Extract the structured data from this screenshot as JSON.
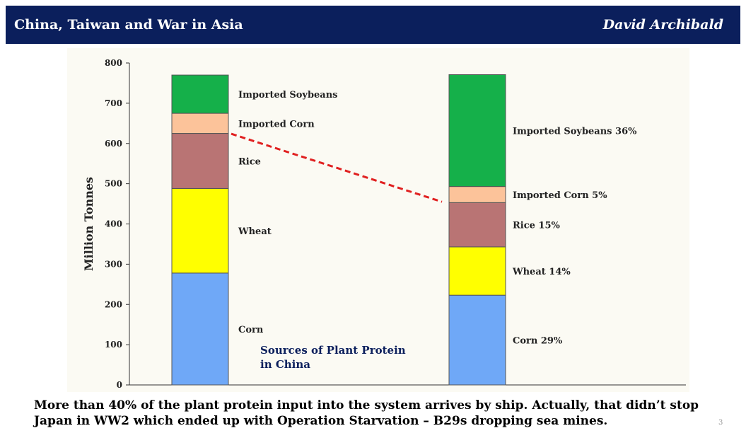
{
  "header": {
    "title": "China, Taiwan and War in Asia",
    "author": "David Archibald"
  },
  "caption": "More than 40% of the plant protein input into the system arrives by ship. Actually, that didn’t stop Japan in WW2 which ended up with Operation Starvation – B29s dropping sea mines.",
  "slide_number": "3",
  "chart_data": {
    "type": "bar",
    "stacked": true,
    "ylabel": "Million Tonnes",
    "ylim": [
      0,
      800
    ],
    "yticks": [
      0,
      100,
      200,
      300,
      400,
      500,
      600,
      700,
      800
    ],
    "annotation": "Sources of Plant Protein in China",
    "categories": [
      "",
      ""
    ],
    "series": [
      {
        "key": "corn",
        "color": "#6fa8f7",
        "values": [
          278,
          223
        ],
        "labels": [
          "Corn",
          "Corn 29%"
        ]
      },
      {
        "key": "wheat",
        "color": "#ffff00",
        "values": [
          210,
          120
        ],
        "labels": [
          "Wheat",
          "Wheat 14%"
        ]
      },
      {
        "key": "rice",
        "color": "#b97474",
        "values": [
          137,
          110
        ],
        "labels": [
          "Rice",
          "Rice 15%"
        ]
      },
      {
        "key": "imported-corn",
        "color": "#fcc39a",
        "values": [
          50,
          40
        ],
        "labels": [
          "Imported Corn",
          "Imported Corn 5%"
        ]
      },
      {
        "key": "imported-soybeans",
        "color": "#15b04a",
        "values": [
          95,
          278
        ],
        "labels": [
          "Imported Soybeans",
          "Imported Soybeans 36%"
        ]
      }
    ],
    "connector": {
      "color": "#e02020",
      "from_y": 624,
      "to_y": 455,
      "style": "dashed"
    }
  }
}
